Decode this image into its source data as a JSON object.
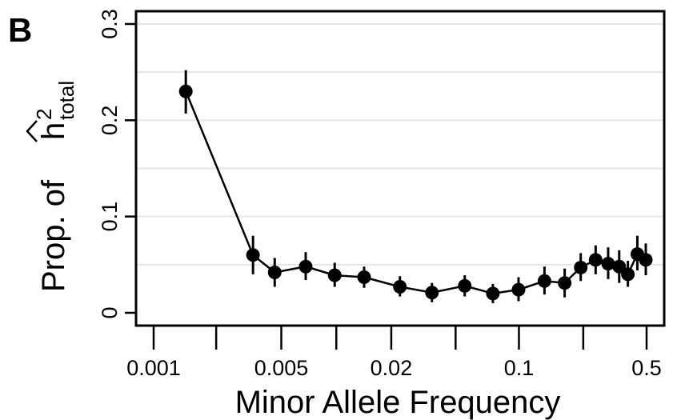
{
  "panel_label": "B",
  "chart_data": {
    "type": "scatter",
    "title": "",
    "xlabel": "Minor Allele Frequency",
    "ylabel_prefix": "Prop. of",
    "ylabel_symbol": "h",
    "ylabel_superscript": "2",
    "ylabel_subscript": "total",
    "x_scale": "log",
    "xlim": [
      0.001,
      0.5
    ],
    "ylim": [
      0,
      0.3
    ],
    "x_ticks": [
      {
        "value": 0.001,
        "label": "0.001"
      },
      {
        "value": 0.0022,
        "label": ""
      },
      {
        "value": 0.005,
        "label": "0.005"
      },
      {
        "value": 0.01,
        "label": ""
      },
      {
        "value": 0.02,
        "label": "0.02"
      },
      {
        "value": 0.045,
        "label": ""
      },
      {
        "value": 0.1,
        "label": "0.1"
      },
      {
        "value": 0.225,
        "label": ""
      },
      {
        "value": 0.5,
        "label": "0.5"
      }
    ],
    "y_ticks": [
      {
        "value": 0,
        "label": "0"
      },
      {
        "value": 0.1,
        "label": "0.1"
      },
      {
        "value": 0.2,
        "label": "0.2"
      },
      {
        "value": 0.3,
        "label": "0.3"
      }
    ],
    "grid": true,
    "gridlines_y": [
      0.05,
      0.1,
      0.15,
      0.2,
      0.25,
      0.3
    ],
    "connected": true,
    "color": "#000000",
    "series": [
      {
        "points": [
          {
            "x": 0.0015,
            "y": 0.23,
            "lo": 0.207,
            "hi": 0.252
          },
          {
            "x": 0.0035,
            "y": 0.06,
            "lo": 0.04,
            "hi": 0.08
          },
          {
            "x": 0.0046,
            "y": 0.042,
            "lo": 0.027,
            "hi": 0.057
          },
          {
            "x": 0.0068,
            "y": 0.048,
            "lo": 0.034,
            "hi": 0.063
          },
          {
            "x": 0.0098,
            "y": 0.039,
            "lo": 0.027,
            "hi": 0.052
          },
          {
            "x": 0.0142,
            "y": 0.037,
            "lo": 0.026,
            "hi": 0.048
          },
          {
            "x": 0.0223,
            "y": 0.027,
            "lo": 0.017,
            "hi": 0.038
          },
          {
            "x": 0.0334,
            "y": 0.021,
            "lo": 0.011,
            "hi": 0.031
          },
          {
            "x": 0.0505,
            "y": 0.028,
            "lo": 0.017,
            "hi": 0.039
          },
          {
            "x": 0.072,
            "y": 0.02,
            "lo": 0.01,
            "hi": 0.03
          },
          {
            "x": 0.0995,
            "y": 0.024,
            "lo": 0.012,
            "hi": 0.037
          },
          {
            "x": 0.138,
            "y": 0.033,
            "lo": 0.019,
            "hi": 0.048
          },
          {
            "x": 0.178,
            "y": 0.031,
            "lo": 0.016,
            "hi": 0.046
          },
          {
            "x": 0.218,
            "y": 0.047,
            "lo": 0.033,
            "hi": 0.062
          },
          {
            "x": 0.263,
            "y": 0.055,
            "lo": 0.04,
            "hi": 0.07
          },
          {
            "x": 0.308,
            "y": 0.051,
            "lo": 0.035,
            "hi": 0.068
          },
          {
            "x": 0.354,
            "y": 0.048,
            "lo": 0.031,
            "hi": 0.065
          },
          {
            "x": 0.395,
            "y": 0.04,
            "lo": 0.027,
            "hi": 0.054
          },
          {
            "x": 0.445,
            "y": 0.061,
            "lo": 0.044,
            "hi": 0.08
          },
          {
            "x": 0.495,
            "y": 0.055,
            "lo": 0.039,
            "hi": 0.072
          }
        ]
      }
    ]
  }
}
